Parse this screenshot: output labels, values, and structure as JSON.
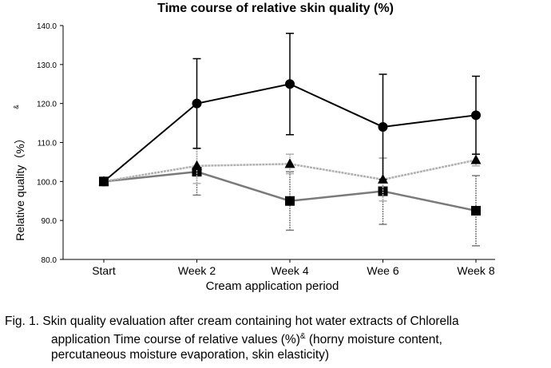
{
  "chart_data": {
    "type": "line",
    "title": "Time course of relative skin quality (%)",
    "xlabel": "Cream application period",
    "ylabel": "Relative quality（%）",
    "ylabel_superscript": "&",
    "categories": [
      "Start",
      "Week 2",
      "Week 4",
      "Wee 6",
      "Week 8"
    ],
    "ylim": [
      80,
      140
    ],
    "yticks": [
      "80.0",
      "90.0",
      "100.0",
      "110.0",
      "120.0",
      "130.0",
      "140.0"
    ],
    "grid": false,
    "series": [
      {
        "marker": "circle",
        "color": "#000000",
        "values": [
          100,
          120,
          125,
          114,
          117
        ],
        "errors": [
          0,
          11.5,
          13,
          13.5,
          10
        ]
      },
      {
        "marker": "triangle",
        "color": "#b0b0b0",
        "values": [
          100,
          104,
          104.5,
          100.5,
          105.5
        ],
        "errors": [
          0,
          4.5,
          2.5,
          5.5,
          1.5
        ]
      },
      {
        "marker": "square",
        "color": "#7a7a7a",
        "values": [
          100,
          102.5,
          95,
          97.5,
          92.5
        ],
        "errors": [
          0,
          6,
          7.5,
          8.5,
          9
        ]
      }
    ]
  },
  "caption": {
    "line1": "Fig. 1. Skin quality evaluation after cream containing hot water extracts of Chlorella",
    "line2_main": "application Time course of relative values (%)",
    "line2_sup": "&",
    "line2_rest": " (horny moisture content,",
    "line3": "percutaneous moisture evaporation, skin elasticity)"
  }
}
